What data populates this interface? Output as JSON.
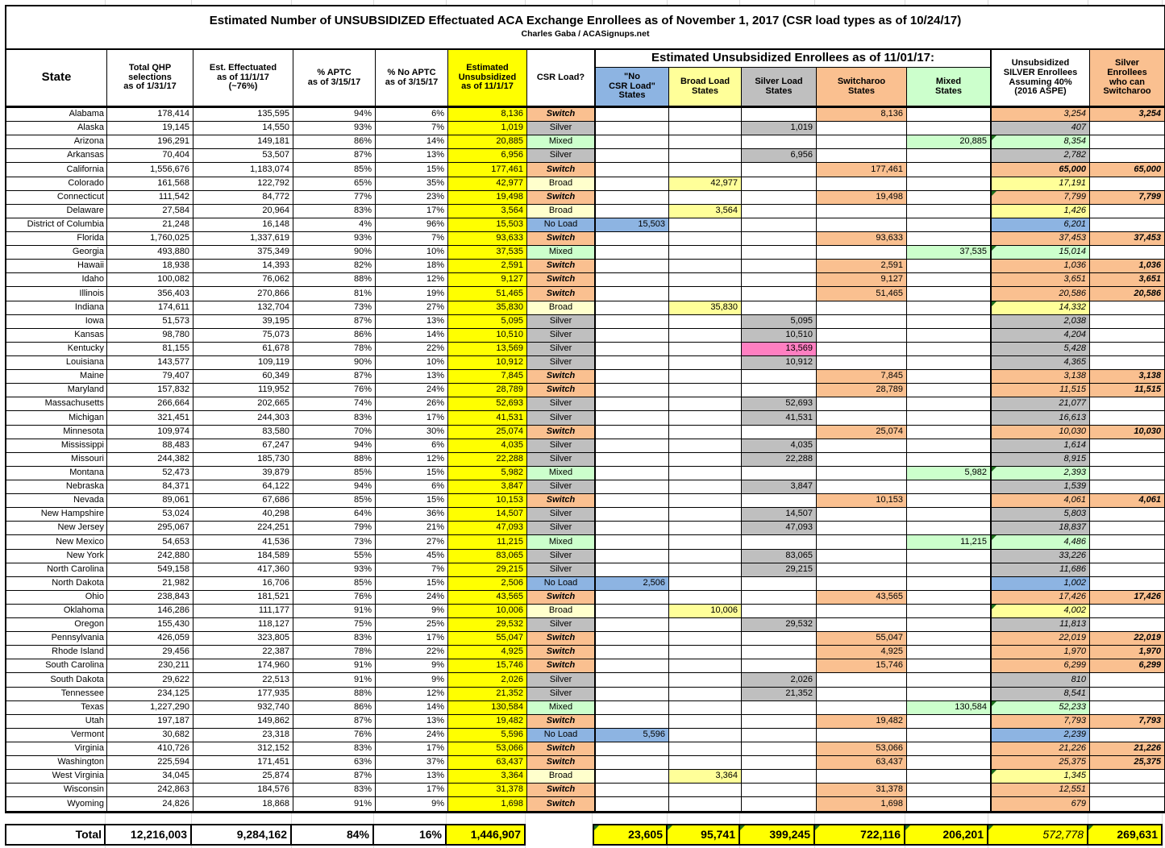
{
  "colors": {
    "accent_yellow": "#FFFF00",
    "switcharoo_orange": "#FAC090",
    "silver_gray": "#BFBFBF",
    "mixed_green": "#CCFFCC",
    "broad_yellow": "#FFFF99",
    "broad_pale": "#FFFFCC",
    "noload_blue": "#8DB4E2",
    "kentucky_pink": "#FF7FC1",
    "flag_green": "#1F6F1F"
  },
  "chart_data": {
    "type": "table",
    "title": "Estimated Number of UNSUBSIDIZED Effectuated ACA Exchange Enrollees as of November 1, 2017 (CSR load types as of 10/24/17)",
    "subtitle": "Charles Gaba / ACASignups.net",
    "group_header": "Estimated Unsubsidized Enrollees as of 11/01/17:",
    "columns": {
      "state": "State",
      "qhp": "Total QHP\nselections\nas of 1/31/17",
      "eff": "Est. Effectuated\nas of 11/1/17\n(~76%)",
      "aptc": "% APTC\nas of 3/15/17",
      "noaptc": "% No APTC\nas of 3/15/17",
      "unsub": "Estimated\nUnsubsidized\nas of 11/1/17",
      "csr": "CSR Load?",
      "noload": "\"No\nCSR Load\"\nStates",
      "broad": "Broad Load\nStates",
      "silver": "Silver Load\nStates",
      "switcharoo": "Switcharoo\nStates",
      "mixed": "Mixed\nStates",
      "s40": "Unsubsidized\nSILVER Enrollees\nAssuming 40%\n(2016 ASPE)",
      "can": "Silver\nEnrollees\nwho can\nSwitcharoo"
    },
    "rows": [
      {
        "state": "Alabama",
        "qhp": "178,414",
        "eff": "135,595",
        "aptc": "94%",
        "noaptc": "6%",
        "unsub": "8,136",
        "csr": "Switch",
        "load": "switch",
        "switcharoo": "8,136",
        "s40": "3,254",
        "can": "3,254"
      },
      {
        "state": "Alaska",
        "qhp": "19,145",
        "eff": "14,550",
        "aptc": "93%",
        "noaptc": "7%",
        "unsub": "1,019",
        "csr": "Silver",
        "load": "silver",
        "silver": "1,019",
        "s40": "407"
      },
      {
        "state": "Arizona",
        "qhp": "196,291",
        "eff": "149,181",
        "aptc": "86%",
        "noaptc": "14%",
        "unsub": "20,885",
        "csr": "Mixed",
        "load": "mixed",
        "mixed": "20,885",
        "s40": "8,354",
        "f": true
      },
      {
        "state": "Arkansas",
        "qhp": "70,404",
        "eff": "53,507",
        "aptc": "87%",
        "noaptc": "13%",
        "unsub": "6,956",
        "csr": "Silver",
        "load": "silver",
        "silver": "6,956",
        "s40": "2,782"
      },
      {
        "state": "California",
        "qhp": "1,556,676",
        "eff": "1,183,074",
        "aptc": "85%",
        "noaptc": "15%",
        "unsub": "177,461",
        "csr": "Switch",
        "load": "switch",
        "switcharoo": "177,461",
        "s40": "65,000",
        "can": "65,000",
        "b": true
      },
      {
        "state": "Colorado",
        "qhp": "161,568",
        "eff": "122,792",
        "aptc": "65%",
        "noaptc": "35%",
        "unsub": "42,977",
        "csr": "Broad",
        "load": "broad",
        "broad": "42,977",
        "s40": "17,191"
      },
      {
        "state": "Connecticut",
        "qhp": "111,542",
        "eff": "84,772",
        "aptc": "77%",
        "noaptc": "23%",
        "unsub": "19,498",
        "csr": "Switch",
        "load": "switch",
        "switcharoo": "19,498",
        "s40": "7,799",
        "can": "7,799",
        "f": true
      },
      {
        "state": "Delaware",
        "qhp": "27,584",
        "eff": "20,964",
        "aptc": "83%",
        "noaptc": "17%",
        "unsub": "3,564",
        "csr": "Broad",
        "load": "broad",
        "broad": "3,564",
        "s40": "1,426"
      },
      {
        "state": "District of Columbia",
        "qhp": "21,248",
        "eff": "16,148",
        "aptc": "4%",
        "noaptc": "96%",
        "unsub": "15,503",
        "csr": "No Load",
        "load": "noload",
        "noload": "15,503",
        "s40": "6,201"
      },
      {
        "state": "Florida",
        "qhp": "1,760,025",
        "eff": "1,337,619",
        "aptc": "93%",
        "noaptc": "7%",
        "unsub": "93,633",
        "csr": "Switch",
        "load": "switch",
        "switcharoo": "93,633",
        "s40": "37,453",
        "can": "37,453"
      },
      {
        "state": "Georgia",
        "qhp": "493,880",
        "eff": "375,349",
        "aptc": "90%",
        "noaptc": "10%",
        "unsub": "37,535",
        "csr": "Mixed",
        "load": "mixed",
        "mixed": "37,535",
        "s40": "15,014",
        "f": true
      },
      {
        "state": "Hawaii",
        "qhp": "18,938",
        "eff": "14,393",
        "aptc": "82%",
        "noaptc": "18%",
        "unsub": "2,591",
        "csr": "Switch",
        "load": "switch",
        "switcharoo": "2,591",
        "s40": "1,036",
        "can": "1,036"
      },
      {
        "state": "Idaho",
        "qhp": "100,082",
        "eff": "76,062",
        "aptc": "88%",
        "noaptc": "12%",
        "unsub": "9,127",
        "csr": "Switch",
        "load": "switch",
        "switcharoo": "9,127",
        "s40": "3,651",
        "can": "3,651"
      },
      {
        "state": "Illinois",
        "qhp": "356,403",
        "eff": "270,866",
        "aptc": "81%",
        "noaptc": "19%",
        "unsub": "51,465",
        "csr": "Switch",
        "load": "switch",
        "switcharoo": "51,465",
        "s40": "20,586",
        "can": "20,586"
      },
      {
        "state": "Indiana",
        "qhp": "174,611",
        "eff": "132,704",
        "aptc": "73%",
        "noaptc": "27%",
        "unsub": "35,830",
        "csr": "Broad",
        "load": "broad",
        "broad": "35,830",
        "s40": "14,332",
        "f": true
      },
      {
        "state": "Iowa",
        "qhp": "51,573",
        "eff": "39,195",
        "aptc": "87%",
        "noaptc": "13%",
        "unsub": "5,095",
        "csr": "Silver",
        "load": "silver",
        "silver": "5,095",
        "s40": "2,038"
      },
      {
        "state": "Kansas",
        "qhp": "98,780",
        "eff": "75,073",
        "aptc": "86%",
        "noaptc": "14%",
        "unsub": "10,510",
        "csr": "Silver",
        "load": "silver",
        "silver": "10,510",
        "s40": "4,204"
      },
      {
        "state": "Kentucky",
        "qhp": "81,155",
        "eff": "61,678",
        "aptc": "78%",
        "noaptc": "22%",
        "unsub": "13,569",
        "csr": "Silver",
        "load": "silver",
        "silver": "13,569",
        "s40": "5,428",
        "pink": true
      },
      {
        "state": "Louisiana",
        "qhp": "143,577",
        "eff": "109,119",
        "aptc": "90%",
        "noaptc": "10%",
        "unsub": "10,912",
        "csr": "Silver",
        "load": "silver",
        "silver": "10,912",
        "s40": "4,365"
      },
      {
        "state": "Maine",
        "qhp": "79,407",
        "eff": "60,349",
        "aptc": "87%",
        "noaptc": "13%",
        "unsub": "7,845",
        "csr": "Switch",
        "load": "switch",
        "switcharoo": "7,845",
        "s40": "3,138",
        "can": "3,138"
      },
      {
        "state": "Maryland",
        "qhp": "157,832",
        "eff": "119,952",
        "aptc": "76%",
        "noaptc": "24%",
        "unsub": "28,789",
        "csr": "Switch",
        "load": "switch",
        "switcharoo": "28,789",
        "s40": "11,515",
        "can": "11,515"
      },
      {
        "state": "Massachusetts",
        "qhp": "266,664",
        "eff": "202,665",
        "aptc": "74%",
        "noaptc": "26%",
        "unsub": "52,693",
        "csr": "Silver",
        "load": "silver",
        "silver": "52,693",
        "s40": "21,077"
      },
      {
        "state": "Michigan",
        "qhp": "321,451",
        "eff": "244,303",
        "aptc": "83%",
        "noaptc": "17%",
        "unsub": "41,531",
        "csr": "Silver",
        "load": "silver",
        "silver": "41,531",
        "s40": "16,613"
      },
      {
        "state": "Minnesota",
        "qhp": "109,974",
        "eff": "83,580",
        "aptc": "70%",
        "noaptc": "30%",
        "unsub": "25,074",
        "csr": "Switch",
        "load": "switch",
        "switcharoo": "25,074",
        "s40": "10,030",
        "can": "10,030"
      },
      {
        "state": "Mississippi",
        "qhp": "88,483",
        "eff": "67,247",
        "aptc": "94%",
        "noaptc": "6%",
        "unsub": "4,035",
        "csr": "Silver",
        "load": "silver",
        "silver": "4,035",
        "s40": "1,614"
      },
      {
        "state": "Missouri",
        "qhp": "244,382",
        "eff": "185,730",
        "aptc": "88%",
        "noaptc": "12%",
        "unsub": "22,288",
        "csr": "Silver",
        "load": "silver",
        "silver": "22,288",
        "s40": "8,915"
      },
      {
        "state": "Montana",
        "qhp": "52,473",
        "eff": "39,879",
        "aptc": "85%",
        "noaptc": "15%",
        "unsub": "5,982",
        "csr": "Mixed",
        "load": "mixed",
        "mixed": "5,982",
        "s40": "2,393",
        "f": true
      },
      {
        "state": "Nebraska",
        "qhp": "84,371",
        "eff": "64,122",
        "aptc": "94%",
        "noaptc": "6%",
        "unsub": "3,847",
        "csr": "Silver",
        "load": "silver",
        "silver": "3,847",
        "s40": "1,539"
      },
      {
        "state": "Nevada",
        "qhp": "89,061",
        "eff": "67,686",
        "aptc": "85%",
        "noaptc": "15%",
        "unsub": "10,153",
        "csr": "Switch",
        "load": "switch",
        "switcharoo": "10,153",
        "s40": "4,061",
        "can": "4,061"
      },
      {
        "state": "New Hampshire",
        "qhp": "53,024",
        "eff": "40,298",
        "aptc": "64%",
        "noaptc": "36%",
        "unsub": "14,507",
        "csr": "Silver",
        "load": "silver",
        "silver": "14,507",
        "s40": "5,803"
      },
      {
        "state": "New Jersey",
        "qhp": "295,067",
        "eff": "224,251",
        "aptc": "79%",
        "noaptc": "21%",
        "unsub": "47,093",
        "csr": "Silver",
        "load": "silver",
        "silver": "47,093",
        "s40": "18,837"
      },
      {
        "state": "New Mexico",
        "qhp": "54,653",
        "eff": "41,536",
        "aptc": "73%",
        "noaptc": "27%",
        "unsub": "11,215",
        "csr": "Mixed",
        "load": "mixed",
        "mixed": "11,215",
        "s40": "4,486",
        "f": true
      },
      {
        "state": "New York",
        "qhp": "242,880",
        "eff": "184,589",
        "aptc": "55%",
        "noaptc": "45%",
        "unsub": "83,065",
        "csr": "Silver",
        "load": "silver",
        "silver": "83,065",
        "s40": "33,226"
      },
      {
        "state": "North Carolina",
        "qhp": "549,158",
        "eff": "417,360",
        "aptc": "93%",
        "noaptc": "7%",
        "unsub": "29,215",
        "csr": "Silver",
        "load": "silver",
        "silver": "29,215",
        "s40": "11,686"
      },
      {
        "state": "North Dakota",
        "qhp": "21,982",
        "eff": "16,706",
        "aptc": "85%",
        "noaptc": "15%",
        "unsub": "2,506",
        "csr": "No Load",
        "load": "noload",
        "noload": "2,506",
        "s40": "1,002"
      },
      {
        "state": "Ohio",
        "qhp": "238,843",
        "eff": "181,521",
        "aptc": "76%",
        "noaptc": "24%",
        "unsub": "43,565",
        "csr": "Switch",
        "load": "switch",
        "switcharoo": "43,565",
        "s40": "17,426",
        "can": "17,426"
      },
      {
        "state": "Oklahoma",
        "qhp": "146,286",
        "eff": "111,177",
        "aptc": "91%",
        "noaptc": "9%",
        "unsub": "10,006",
        "csr": "Broad",
        "load": "broad",
        "broad": "10,006",
        "s40": "4,002",
        "f": true
      },
      {
        "state": "Oregon",
        "qhp": "155,430",
        "eff": "118,127",
        "aptc": "75%",
        "noaptc": "25%",
        "unsub": "29,532",
        "csr": "Silver",
        "load": "silver",
        "silver": "29,532",
        "s40": "11,813"
      },
      {
        "state": "Pennsylvania",
        "qhp": "426,059",
        "eff": "323,805",
        "aptc": "83%",
        "noaptc": "17%",
        "unsub": "55,047",
        "csr": "Switch",
        "load": "switch",
        "switcharoo": "55,047",
        "s40": "22,019",
        "can": "22,019"
      },
      {
        "state": "Rhode Island",
        "qhp": "29,456",
        "eff": "22,387",
        "aptc": "78%",
        "noaptc": "22%",
        "unsub": "4,925",
        "csr": "Switch",
        "load": "switch",
        "switcharoo": "4,925",
        "s40": "1,970",
        "can": "1,970"
      },
      {
        "state": "South Carolina",
        "qhp": "230,211",
        "eff": "174,960",
        "aptc": "91%",
        "noaptc": "9%",
        "unsub": "15,746",
        "csr": "Switch",
        "load": "switch",
        "switcharoo": "15,746",
        "s40": "6,299",
        "can": "6,299"
      },
      {
        "state": "South Dakota",
        "qhp": "29,622",
        "eff": "22,513",
        "aptc": "91%",
        "noaptc": "9%",
        "unsub": "2,026",
        "csr": "Silver",
        "load": "silver",
        "silver": "2,026",
        "s40": "810"
      },
      {
        "state": "Tennessee",
        "qhp": "234,125",
        "eff": "177,935",
        "aptc": "88%",
        "noaptc": "12%",
        "unsub": "21,352",
        "csr": "Silver",
        "load": "silver",
        "silver": "21,352",
        "s40": "8,541"
      },
      {
        "state": "Texas",
        "qhp": "1,227,290",
        "eff": "932,740",
        "aptc": "86%",
        "noaptc": "14%",
        "unsub": "130,584",
        "csr": "Mixed",
        "load": "mixed",
        "mixed": "130,584",
        "s40": "52,233",
        "f": true
      },
      {
        "state": "Utah",
        "qhp": "197,187",
        "eff": "149,862",
        "aptc": "87%",
        "noaptc": "13%",
        "unsub": "19,482",
        "csr": "Switch",
        "load": "switch",
        "switcharoo": "19,482",
        "s40": "7,793",
        "can": "7,793"
      },
      {
        "state": "Vermont",
        "qhp": "30,682",
        "eff": "23,318",
        "aptc": "76%",
        "noaptc": "24%",
        "unsub": "5,596",
        "csr": "No Load",
        "load": "noload",
        "noload": "5,596",
        "s40": "2,239"
      },
      {
        "state": "Virginia",
        "qhp": "410,726",
        "eff": "312,152",
        "aptc": "83%",
        "noaptc": "17%",
        "unsub": "53,066",
        "csr": "Switch",
        "load": "switch",
        "switcharoo": "53,066",
        "s40": "21,226",
        "can": "21,226"
      },
      {
        "state": "Washington",
        "qhp": "225,594",
        "eff": "171,451",
        "aptc": "63%",
        "noaptc": "37%",
        "unsub": "63,437",
        "csr": "Switch",
        "load": "switch",
        "switcharoo": "63,437",
        "s40": "25,375",
        "can": "25,375"
      },
      {
        "state": "West Virginia",
        "qhp": "34,045",
        "eff": "25,874",
        "aptc": "87%",
        "noaptc": "13%",
        "unsub": "3,364",
        "csr": "Broad",
        "load": "broad",
        "broad": "3,364",
        "s40": "1,345",
        "f": true
      },
      {
        "state": "Wisconsin",
        "qhp": "242,863",
        "eff": "184,576",
        "aptc": "83%",
        "noaptc": "17%",
        "unsub": "31,378",
        "csr": "Switch",
        "load": "switch",
        "switcharoo": "31,378",
        "s40": "12,551"
      },
      {
        "state": "Wyoming",
        "qhp": "24,826",
        "eff": "18,868",
        "aptc": "91%",
        "noaptc": "9%",
        "unsub": "1,698",
        "csr": "Switch",
        "load": "switch",
        "switcharoo": "1,698",
        "s40": "679"
      }
    ],
    "totals": {
      "state": "Total",
      "qhp": "12,216,003",
      "eff": "9,284,162",
      "aptc": "84%",
      "noaptc": "16%",
      "unsub": "1,446,907",
      "csr": "",
      "noload": "23,605",
      "broad": "95,741",
      "silver": "399,245",
      "switcharoo": "722,116",
      "mixed": "206,201",
      "s40": "572,778",
      "can": "269,631"
    }
  }
}
